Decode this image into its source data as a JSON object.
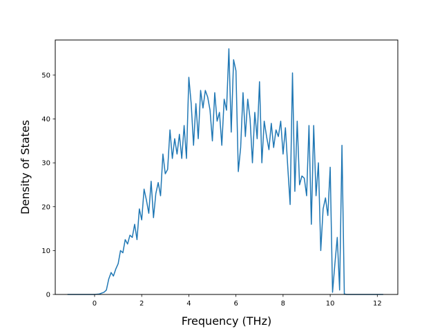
{
  "chart_data": {
    "type": "line",
    "xlabel": "Frequency (THz)",
    "ylabel": "Density of States",
    "xlim": [
      -1.67,
      12.87
    ],
    "ylim": [
      0,
      58
    ],
    "xticks": [
      0,
      2,
      4,
      6,
      8,
      10,
      12
    ],
    "xtick_labels": [
      "0",
      "2",
      "4",
      "6",
      "8",
      "10",
      "12"
    ],
    "yticks": [
      0,
      10,
      20,
      30,
      40,
      50
    ],
    "ytick_labels": [
      "0",
      "10",
      "20",
      "30",
      "40",
      "50"
    ],
    "grid": false,
    "line_color": "#1f77b4",
    "series": [
      {
        "x": [
          -1.15,
          -0.5,
          0.0,
          0.2,
          0.3,
          0.4,
          0.5,
          0.6,
          0.7,
          0.8,
          0.9,
          1.0,
          1.1,
          1.2,
          1.3,
          1.4,
          1.5,
          1.6,
          1.7,
          1.8,
          1.9,
          2.0,
          2.1,
          2.2,
          2.3,
          2.4,
          2.5,
          2.6,
          2.7,
          2.8,
          2.9,
          3.0,
          3.1,
          3.2,
          3.3,
          3.4,
          3.5,
          3.6,
          3.7,
          3.8,
          3.9,
          4.0,
          4.1,
          4.2,
          4.3,
          4.4,
          4.5,
          4.6,
          4.7,
          4.8,
          4.9,
          5.0,
          5.1,
          5.2,
          5.3,
          5.4,
          5.5,
          5.6,
          5.7,
          5.8,
          5.9,
          6.0,
          6.1,
          6.2,
          6.3,
          6.4,
          6.5,
          6.6,
          6.7,
          6.8,
          6.9,
          7.0,
          7.1,
          7.2,
          7.3,
          7.4,
          7.5,
          7.6,
          7.7,
          7.8,
          7.9,
          8.0,
          8.1,
          8.2,
          8.3,
          8.4,
          8.5,
          8.6,
          8.7,
          8.8,
          8.9,
          9.0,
          9.1,
          9.2,
          9.3,
          9.4,
          9.5,
          9.6,
          9.7,
          9.8,
          9.9,
          10.0,
          10.1,
          10.2,
          10.3,
          10.4,
          10.5,
          10.6,
          10.7,
          11.0,
          11.5,
          12.0,
          12.25
        ],
        "y": [
          0,
          0,
          0,
          0.1,
          0.3,
          0.5,
          1.0,
          3.5,
          5.0,
          4.2,
          5.8,
          7.0,
          10.0,
          9.5,
          12.5,
          11.5,
          13.5,
          13.0,
          16.0,
          12.5,
          19.5,
          17.0,
          24.0,
          21.5,
          18.5,
          25.8,
          17.5,
          23.0,
          25.5,
          22.5,
          32.0,
          27.5,
          28.5,
          37.5,
          31.0,
          35.5,
          32.0,
          36.5,
          31.0,
          38.5,
          31.0,
          49.5,
          43.5,
          34.0,
          43.5,
          35.5,
          46.5,
          42.5,
          46.5,
          45.0,
          42.0,
          35.0,
          46.0,
          39.5,
          41.5,
          34.0,
          44.5,
          42.0,
          56.0,
          37.0,
          53.5,
          51.0,
          28.0,
          33.5,
          46.0,
          36.0,
          44.5,
          40.0,
          30.0,
          41.5,
          35.5,
          48.5,
          30.0,
          39.5,
          36.0,
          33.0,
          39.0,
          33.5,
          37.5,
          36.0,
          39.5,
          32.0,
          38.0,
          29.0,
          20.5,
          50.5,
          23.5,
          39.5,
          25.0,
          27.0,
          26.5,
          22.5,
          38.5,
          16.0,
          38.5,
          22.5,
          30.0,
          10.0,
          19.5,
          22.0,
          18.0,
          29.0,
          0.5,
          7.0,
          13.0,
          1.0,
          34.0,
          0.1,
          0,
          0,
          0,
          0,
          0
        ]
      }
    ]
  }
}
